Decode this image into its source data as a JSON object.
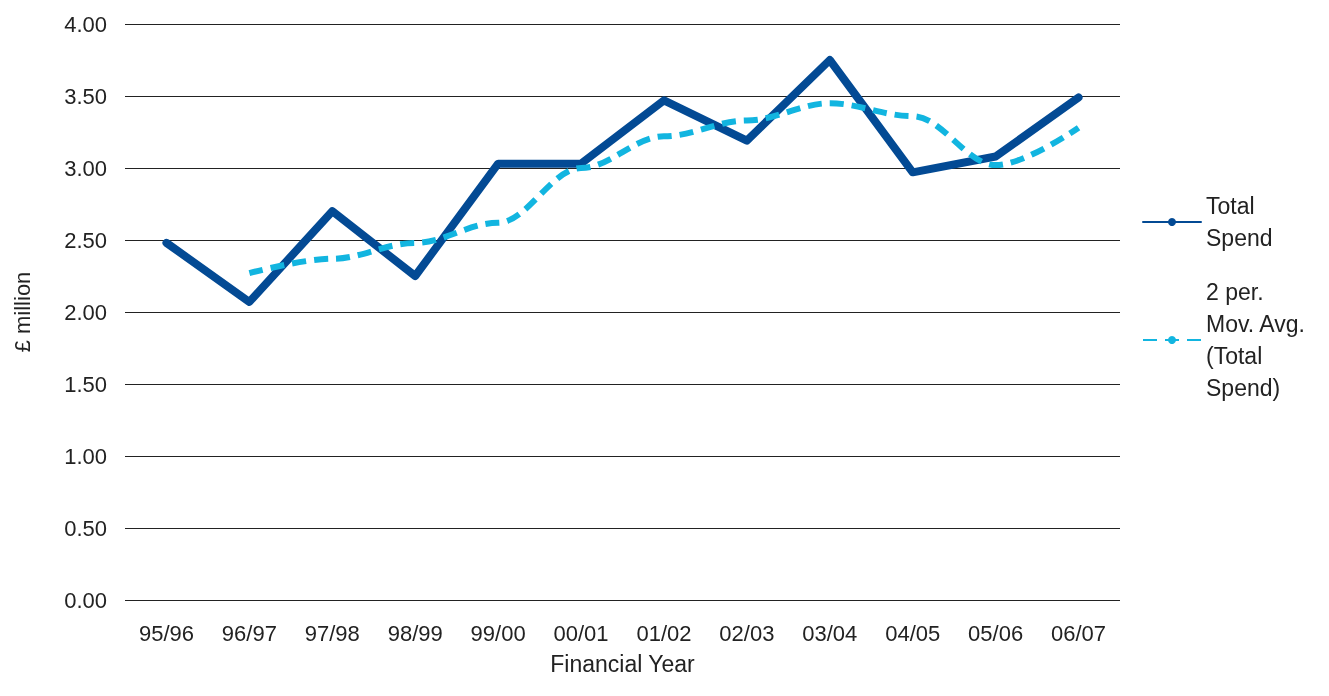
{
  "chart_data": {
    "type": "line",
    "xlabel": "Financial Year",
    "ylabel": "£ million",
    "categories": [
      "95/96",
      "96/97",
      "97/98",
      "98/99",
      "99/00",
      "00/01",
      "01/02",
      "02/03",
      "03/04",
      "04/05",
      "05/06",
      "06/07"
    ],
    "series": [
      {
        "name": "Total Spend",
        "color": "#034a94",
        "line_style": "solid",
        "values": [
          2.48,
          2.07,
          2.7,
          2.25,
          3.03,
          3.03,
          3.47,
          3.19,
          3.75,
          2.97,
          3.08,
          3.49
        ]
      },
      {
        "name": "2 per. Mov. Avg. (Total Spend)",
        "color": "#12b5e0",
        "line_style": "dashed",
        "values": [
          null,
          2.27,
          2.37,
          2.48,
          2.62,
          3.0,
          3.22,
          3.33,
          3.45,
          3.36,
          3.02,
          3.28
        ]
      }
    ],
    "ylim": [
      0,
      4
    ],
    "yticks": [
      {
        "value": 0,
        "label": "0.00"
      },
      {
        "value": 0.5,
        "label": "0.50"
      },
      {
        "value": 1,
        "label": "1.00"
      },
      {
        "value": 1.5,
        "label": "1.50"
      },
      {
        "value": 2,
        "label": "2.00"
      },
      {
        "value": 2.5,
        "label": "2.50"
      },
      {
        "value": 3,
        "label": "3.00"
      },
      {
        "value": 3.5,
        "label": "3.50"
      },
      {
        "value": 4,
        "label": "4.00"
      }
    ],
    "grid": "y",
    "legend": "right",
    "marker": "none"
  }
}
